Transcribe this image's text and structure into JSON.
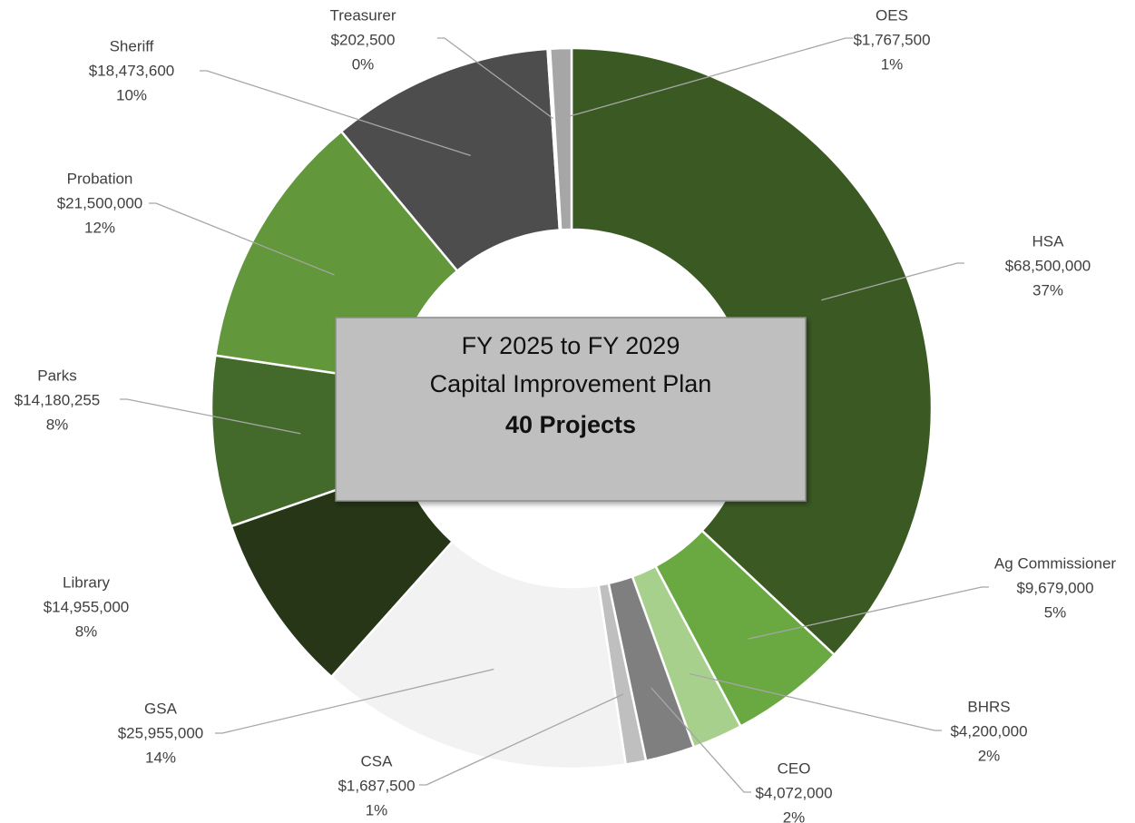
{
  "chart_data": {
    "type": "donut",
    "annotations": [
      "FY 2025 to FY 2029",
      "Capital Improvement Plan",
      "40 Projects"
    ],
    "categories": [
      "HSA",
      "Ag Commissioner",
      "BHRS",
      "CEO",
      "CSA",
      "GSA",
      "Library",
      "Parks",
      "Probation",
      "Sheriff",
      "Treasurer",
      "OES"
    ],
    "values": [
      68500000,
      9679000,
      4200000,
      4072000,
      1687500,
      25955000,
      14955000,
      14180255,
      21500000,
      18473600,
      202500,
      1767500
    ],
    "value_labels": [
      "$68,500,000",
      "$9,679,000",
      "$4,200,000",
      "$4,072,000",
      "$1,687,500",
      "$25,955,000",
      "$14,955,000",
      "$14,180,255",
      "$21,500,000",
      "$18,473,600",
      "$202,500",
      "$1,767,500"
    ],
    "percent_labels": [
      "37%",
      "5%",
      "2%",
      "2%",
      "1%",
      "14%",
      "8%",
      "8%",
      "12%",
      "10%",
      "0%",
      "1%"
    ],
    "colors": [
      "#3b5a23",
      "#6aa842",
      "#a8d08d",
      "#7f7f7f",
      "#bfbfbf",
      "#f2f2f2",
      "#263616",
      "#436a2b",
      "#62983b",
      "#4d4d4d",
      "#e3e3e3",
      "#a6a6a6"
    ]
  }
}
